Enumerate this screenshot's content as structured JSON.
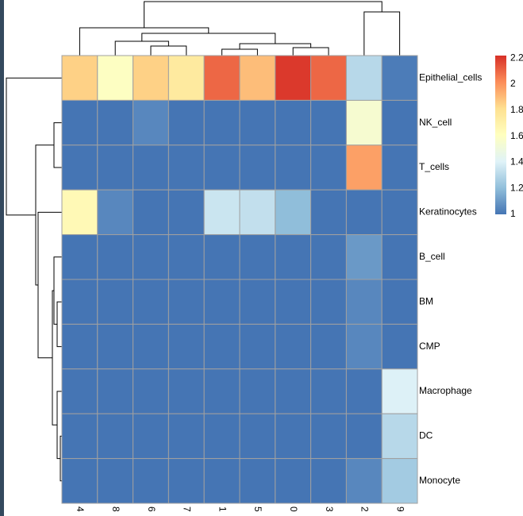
{
  "chart_data": {
    "type": "heatmap",
    "columns": [
      "4",
      "8",
      "6",
      "7",
      "1",
      "5",
      "0",
      "3",
      "2",
      "9"
    ],
    "rows": [
      "Epithelial_cells",
      "NK_cell",
      "T_cells",
      "Keratinocytes",
      "B_cell",
      "BM",
      "CMP",
      "Macrophage",
      "DC",
      "Monocyte"
    ],
    "values": [
      [
        1.85,
        1.6,
        1.85,
        1.75,
        2.1,
        1.9,
        2.2,
        2.1,
        1.3,
        1.02
      ],
      [
        1,
        1,
        1.05,
        1,
        1,
        1,
        1,
        1,
        1.55,
        1
      ],
      [
        1,
        1,
        1,
        1,
        1,
        1,
        1,
        1,
        1.97,
        1
      ],
      [
        1.65,
        1.05,
        1,
        1,
        1.35,
        1.33,
        1.2,
        1,
        1,
        1
      ],
      [
        1,
        1,
        1,
        1,
        1,
        1,
        1,
        1,
        1.1,
        1
      ],
      [
        1,
        1,
        1,
        1,
        1,
        1,
        1,
        1,
        1.05,
        1
      ],
      [
        1,
        1,
        1,
        1,
        1,
        1,
        1,
        1,
        1.05,
        1
      ],
      [
        1,
        1,
        1,
        1,
        1,
        1,
        1,
        1,
        1,
        1.4
      ],
      [
        1,
        1,
        1,
        1,
        1,
        1,
        1,
        1,
        1,
        1.3
      ],
      [
        1,
        1,
        1,
        1,
        1,
        1,
        1,
        1,
        1.05,
        1.25
      ]
    ],
    "zlim": [
      1,
      2.22
    ],
    "zticks": [
      1,
      1.2,
      1.4,
      1.6,
      1.8,
      2,
      2.2
    ],
    "colors": [
      "#4575b4",
      "#91bfdb",
      "#e0f3f8",
      "#ffffbf",
      "#fee090",
      "#fc8d59",
      "#d73027"
    ],
    "border_color": "#a0a0a0"
  }
}
